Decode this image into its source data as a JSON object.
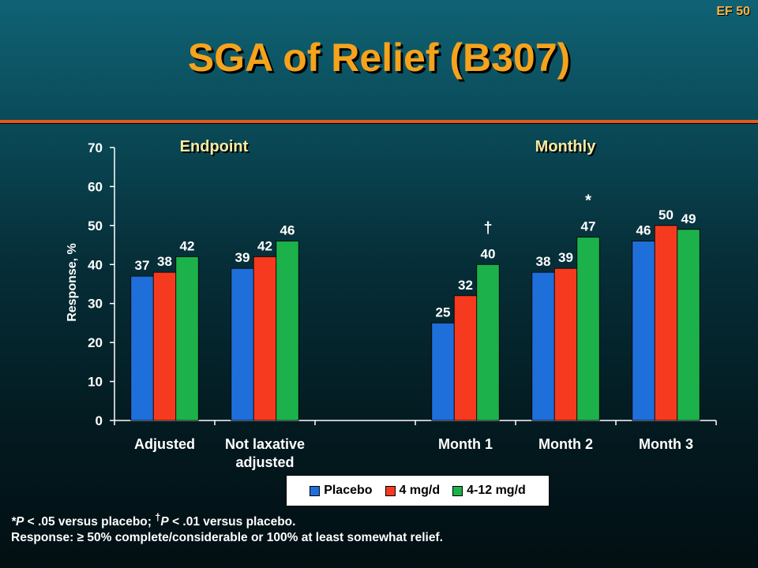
{
  "slide": {
    "id": "EF 50",
    "title": "SGA of Relief (B307)"
  },
  "chart_data": {
    "type": "bar",
    "ylabel": "Response, %",
    "ylim": [
      0,
      70
    ],
    "yticks": [
      0,
      10,
      20,
      30,
      40,
      50,
      60,
      70
    ],
    "group_headers": [
      "Endpoint",
      "Monthly"
    ],
    "categories": [
      {
        "label": "Adjusted",
        "group": "Endpoint"
      },
      {
        "label": "Not laxative adjusted",
        "label_lines": [
          "Not laxative",
          "adjusted"
        ],
        "group": "Endpoint"
      },
      {
        "label": "",
        "group": "Endpoint"
      },
      {
        "label": "Month 1",
        "group": "Monthly"
      },
      {
        "label": "Month 2",
        "group": "Monthly"
      },
      {
        "label": "Month 3",
        "group": "Monthly"
      }
    ],
    "series": [
      {
        "name": "Placebo",
        "color": "#1e6fd9",
        "values": [
          37,
          39,
          null,
          25,
          38,
          46
        ]
      },
      {
        "name": "4 mg/d",
        "color": "#f53a1f",
        "values": [
          38,
          42,
          null,
          32,
          39,
          50
        ]
      },
      {
        "name": "4-12 mg/d",
        "color": "#1cb14a",
        "values": [
          42,
          46,
          null,
          40,
          47,
          49
        ]
      }
    ],
    "annotations": [
      {
        "text": "†",
        "category_index": 3,
        "series_index": 2
      },
      {
        "text": "*",
        "category_index": 4,
        "series_index": 2
      }
    ],
    "grid": false,
    "legend_position": "bottom"
  },
  "footnotes": {
    "sig_star": "*P",
    "sig_star_text": " < .05 versus placebo; ",
    "sig_dagger_sup": "†",
    "sig_dagger": "P",
    "sig_dagger_text": " < .01 versus placebo.",
    "response_def": "Response: ≥ 50% complete/considerable or 100% at least somewhat relief."
  }
}
